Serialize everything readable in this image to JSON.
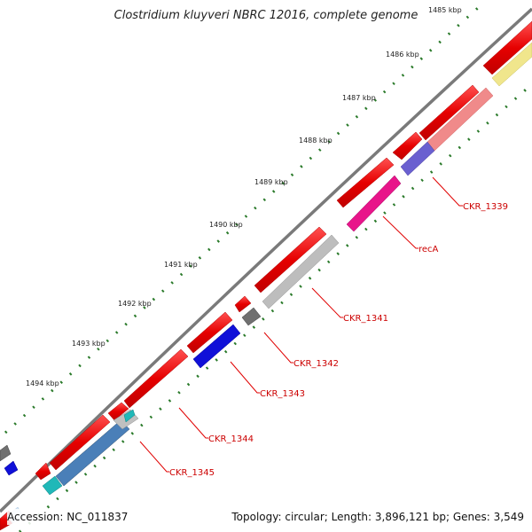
{
  "title": "Clostridium kluyveri NBRC 12016, complete genome",
  "accession": "Accession: NC_011837",
  "summary": "Topology: circular; Length: 3,896,121 bp; Genes: 3,549",
  "colors": {
    "backbone": "#7a7a7a",
    "tick": "#2a7a2a",
    "cds_strand": "#e60000",
    "label_line": "#e00000",
    "label_text": "#cc0000"
  },
  "kbp_labels": [
    "1485 kbp",
    "1486 kbp",
    "1487 kbp",
    "1488 kbp",
    "1489 kbp",
    "1490 kbp",
    "1491 kbp",
    "1492 kbp",
    "1493 kbp",
    "1494 kbp"
  ],
  "gene_labels": [
    "CKR_1339",
    "recA",
    "CKR_1341",
    "CKR_1342",
    "CKR_1343",
    "CKR_1344",
    "CKR_1345"
  ],
  "gene_colors": [
    "#6a60d0",
    "#e8158a",
    "#bdbdbd",
    "#707070",
    "#1010d8",
    "#4a7fb8",
    "#20b8b8"
  ]
}
